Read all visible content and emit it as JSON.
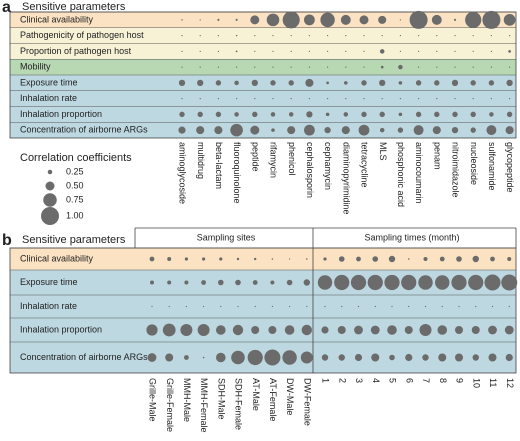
{
  "chart_data": [
    {
      "type": "bubble",
      "panel": "a",
      "title": "Sensitive parameters",
      "rows": [
        "Clinical availability",
        "Pathogenicity of pathogen host",
        "Proportion of pathogen host",
        "Mobility",
        "Exposure time",
        "Inhalation rate",
        "Inhalation proportion",
        "Concentration of airborne ARGs"
      ],
      "row_colors": [
        "#fbe2c2",
        "#f7f2d6",
        "#f7f2d6",
        "#b8d8b3",
        "#bdd8e1",
        "#bdd8e1",
        "#bdd8e1",
        "#bdd8e1"
      ],
      "marker_color": "#6b6b6b",
      "categories": [
        "aminoglycoside",
        "multidrug",
        "beta-lactam",
        "fluoroquinolone",
        "peptide",
        "rifamycin",
        "phenicol",
        "cephalosporin",
        "cephamycin",
        "diaminopyrimidine",
        "tetracycline",
        "MLS",
        "phosphonic acid",
        "aminocoumarin",
        "penam",
        "nitroimidazole",
        "nucleoside",
        "sulfonamide",
        "glycopeptide"
      ],
      "values": [
        [
          0.08,
          0.05,
          0.12,
          0.12,
          0.5,
          0.7,
          0.95,
          0.6,
          0.8,
          0.55,
          0.5,
          0.45,
          0.05,
          1.0,
          0.55,
          0.12,
          0.9,
          1.0,
          0.65
        ],
        [
          0.05,
          0.03,
          0.05,
          0.08,
          0.05,
          0.03,
          0.05,
          0.05,
          0.03,
          0.05,
          0.05,
          0.05,
          0.03,
          0.05,
          0.05,
          0.05,
          0.03,
          0.05,
          0.05
        ],
        [
          0.05,
          0.03,
          0.05,
          0.1,
          0.05,
          0.05,
          0.05,
          0.05,
          0.05,
          0.05,
          0.05,
          0.25,
          0.05,
          0.05,
          0.05,
          0.05,
          0.05,
          0.05,
          0.15
        ],
        [
          0.03,
          0.03,
          0.05,
          0.05,
          0.05,
          0.05,
          0.05,
          0.05,
          0.05,
          0.05,
          0.05,
          0.15,
          0.25,
          0.05,
          0.05,
          0.05,
          0.05,
          0.05,
          0.05
        ],
        [
          0.35,
          0.35,
          0.3,
          0.25,
          0.35,
          0.3,
          0.3,
          0.45,
          0.15,
          0.2,
          0.3,
          0.35,
          0.2,
          0.3,
          0.3,
          0.35,
          0.3,
          0.3,
          0.35
        ],
        [
          0.03,
          0.03,
          0.05,
          0.03,
          0.03,
          0.03,
          0.03,
          0.05,
          0.03,
          0.03,
          0.03,
          0.03,
          0.03,
          0.03,
          0.03,
          0.03,
          0.03,
          0.03,
          0.03
        ],
        [
          0.3,
          0.3,
          0.3,
          0.25,
          0.3,
          0.25,
          0.25,
          0.35,
          0.2,
          0.25,
          0.3,
          0.3,
          0.2,
          0.3,
          0.3,
          0.3,
          0.3,
          0.25,
          0.3
        ],
        [
          0.4,
          0.45,
          0.45,
          0.7,
          0.5,
          0.2,
          0.45,
          0.6,
          0.35,
          0.45,
          0.6,
          0.25,
          0.3,
          0.55,
          0.45,
          0.35,
          0.3,
          0.55,
          0.45
        ]
      ],
      "size_legend": {
        "title": "Correlation coefficients",
        "ticks": [
          0.25,
          {
            "value": 0.5,
            "label": "0.50"
          },
          0.75,
          {
            "value": 1,
            "label": "1.00"
          }
        ]
      }
    },
    {
      "type": "bubble",
      "panel": "b",
      "title": "Sensitive parameters",
      "rows": [
        "Clinical availability",
        "Exposure time",
        "Inhalation rate",
        "Inhalation proportion",
        "Concentration of airborne ARGs"
      ],
      "row_colors": [
        "#fbe2c2",
        "#bdd8e1",
        "#bdd8e1",
        "#bdd8e1",
        "#bdd8e1"
      ],
      "marker_color": "#6b6b6b",
      "groups": [
        {
          "name": "Sampling sites",
          "categories": [
            "Grille-Male",
            "Grille-Female",
            "MMH-Male",
            "MMH-Female",
            "SDH-Male",
            "SDH-Female",
            "AT-Male",
            "AT-Female",
            "DW-Male",
            "DW-Female"
          ],
          "values": [
            [
              0.3,
              0.25,
              0.2,
              0.2,
              0.2,
              0.15,
              0.15,
              0.1,
              0.05,
              0.1
            ],
            [
              0.25,
              0.25,
              0.25,
              0.3,
              0.35,
              0.35,
              0.3,
              0.25,
              0.35,
              0.4
            ],
            [
              0.05,
              0.05,
              0.05,
              0.05,
              0.05,
              0.05,
              0.05,
              0.05,
              0.05,
              0.05
            ],
            [
              0.7,
              0.8,
              0.75,
              0.75,
              0.6,
              0.65,
              0.5,
              0.5,
              0.6,
              0.65
            ],
            [
              0.55,
              0.5,
              0.3,
              0.1,
              0.6,
              0.85,
              0.95,
              1.0,
              0.9,
              0.75
            ]
          ]
        },
        {
          "name": "Sampling times (month)",
          "categories": [
            "1",
            "2",
            "3",
            "4",
            "5",
            "6",
            "7",
            "8",
            "9",
            "10",
            "11",
            "12"
          ],
          "values": [
            [
              0.2,
              0.35,
              0.3,
              0.35,
              0.4,
              0.1,
              0.25,
              0.3,
              0.35,
              0.4,
              0.3,
              0.25
            ],
            [
              0.9,
              0.95,
              0.95,
              0.95,
              0.95,
              0.95,
              0.9,
              0.9,
              0.95,
              0.95,
              1.0,
              1.0
            ],
            [
              0.08,
              0.08,
              0.08,
              0.08,
              0.08,
              0.08,
              0.08,
              0.08,
              0.08,
              0.08,
              0.08,
              0.08
            ],
            [
              0.45,
              0.5,
              0.55,
              0.55,
              0.6,
              0.5,
              0.75,
              0.6,
              0.5,
              0.5,
              0.55,
              0.55
            ],
            [
              0.4,
              0.4,
              0.45,
              0.5,
              0.35,
              0.45,
              0.4,
              0.5,
              0.5,
              0.4,
              0.5,
              0.45
            ]
          ]
        }
      ]
    }
  ]
}
